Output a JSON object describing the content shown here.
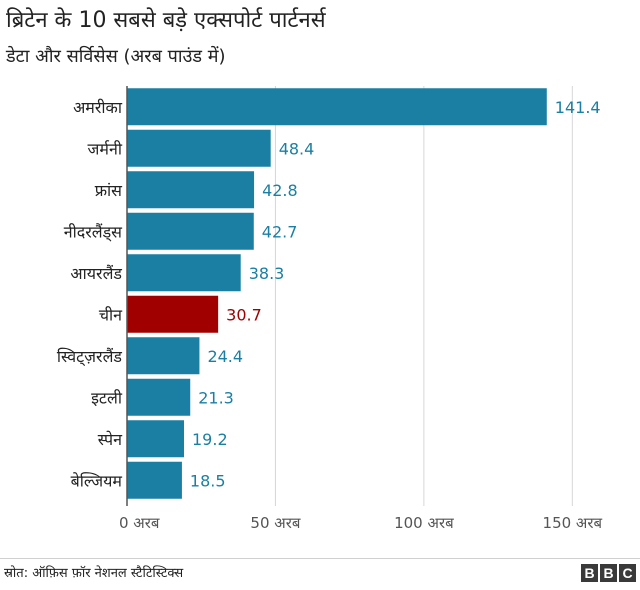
{
  "title": "ब्रिटेन के 10 सबसे बड़े एक्सपोर्ट पार्टनर्स",
  "subtitle": "डेटा और सर्विसेस (अरब पाउंड में)",
  "source": "स्रोत: ऑफ़िस फ़ॉर नेशनल स्टैटिस्टिक्स",
  "logo": [
    "B",
    "B",
    "C"
  ],
  "colors": {
    "bar": "#1a7fa3",
    "highlight": "#a00000",
    "grid": "#d6d6d6",
    "axis": "#555555"
  },
  "chart_data": {
    "type": "bar",
    "orientation": "horizontal",
    "categories": [
      "अमरीका",
      "जर्मनी",
      "फ्रांस",
      "नीदरलैंड्स",
      "आयरलैंड",
      "चीन",
      "स्विट्ज़रलैंड",
      "इटली",
      "स्पेन",
      "बेल्जियम"
    ],
    "values": [
      141.4,
      48.4,
      42.8,
      42.7,
      38.3,
      30.7,
      24.4,
      21.3,
      19.2,
      18.5
    ],
    "value_labels": [
      "141.4",
      "48.4",
      "42.8",
      "42.7",
      "38.3",
      "30.7",
      "24.4",
      "21.3",
      "19.2",
      "18.5"
    ],
    "highlight_index": 5,
    "xlim": [
      0,
      160
    ],
    "xticks": [
      0,
      50,
      100,
      150
    ],
    "xtick_labels": [
      "0 अरब",
      "50 अरब",
      "100 अरब",
      "150 अरब"
    ],
    "grid": true
  }
}
